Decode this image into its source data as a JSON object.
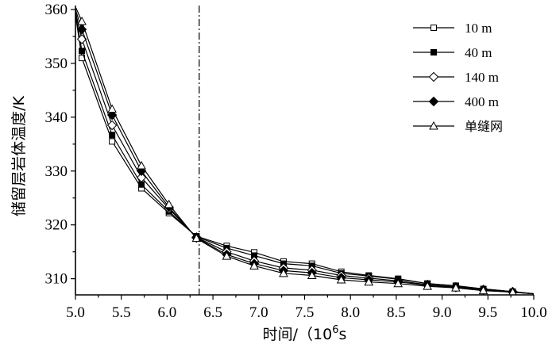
{
  "chart_data": {
    "type": "line",
    "xlabel_prefix": "时间/（10",
    "xlabel_sup": "6",
    "xlabel_suffix": "s",
    "ylabel": "储留层岩体温度/K",
    "xlim": [
      5.0,
      10.0
    ],
    "ylim": [
      307.0,
      360.0
    ],
    "x_ticks": [
      "5.0",
      "5.5",
      "6.0",
      "6.5",
      "7.0",
      "7.5",
      "8.0",
      "8.5",
      "9.0",
      "9.5",
      "10.0"
    ],
    "y_ticks": [
      "310",
      "320",
      "330",
      "340",
      "350",
      "360"
    ],
    "vertical_reference_x": 6.35,
    "legend_position": "top-right",
    "x": [
      5.0,
      5.07,
      5.4,
      5.72,
      6.02,
      6.32,
      6.65,
      6.95,
      7.27,
      7.58,
      7.9,
      8.2,
      8.52,
      8.84,
      9.15,
      9.45,
      9.77,
      10.0
    ],
    "series": [
      {
        "name": "10 m",
        "marker": "open-square",
        "values": [
          359.0,
          351.0,
          335.5,
          326.8,
          322.2,
          317.9,
          316.1,
          314.9,
          313.2,
          312.8,
          311.3,
          310.6,
          310.0,
          309.1,
          308.7,
          308.1,
          307.6,
          307.2
        ]
      },
      {
        "name": "40 m",
        "marker": "filled-square",
        "values": [
          359.3,
          352.3,
          336.7,
          327.5,
          322.5,
          317.8,
          315.7,
          314.3,
          312.8,
          312.4,
          311.0,
          310.5,
          309.9,
          309.1,
          308.7,
          308.1,
          307.6,
          307.2
        ]
      },
      {
        "name": "140 m",
        "marker": "open-diamond",
        "values": [
          359.6,
          354.5,
          338.5,
          328.8,
          323.0,
          317.7,
          315.0,
          313.3,
          312.0,
          311.6,
          310.6,
          310.1,
          309.6,
          308.9,
          308.5,
          308.0,
          307.6,
          307.2
        ]
      },
      {
        "name": "400 m",
        "marker": "filled-diamond",
        "values": [
          360.0,
          356.3,
          340.4,
          330.0,
          323.3,
          317.6,
          314.5,
          312.8,
          311.5,
          311.1,
          310.2,
          309.8,
          309.4,
          308.8,
          308.4,
          307.9,
          307.5,
          307.2
        ]
      },
      {
        "name": "单缝网",
        "marker": "open-triangle",
        "values": [
          360.5,
          357.8,
          341.5,
          331.0,
          323.8,
          317.5,
          314.2,
          312.4,
          311.0,
          310.6,
          309.8,
          309.4,
          309.1,
          308.6,
          308.3,
          307.8,
          307.5,
          307.2
        ]
      }
    ]
  }
}
